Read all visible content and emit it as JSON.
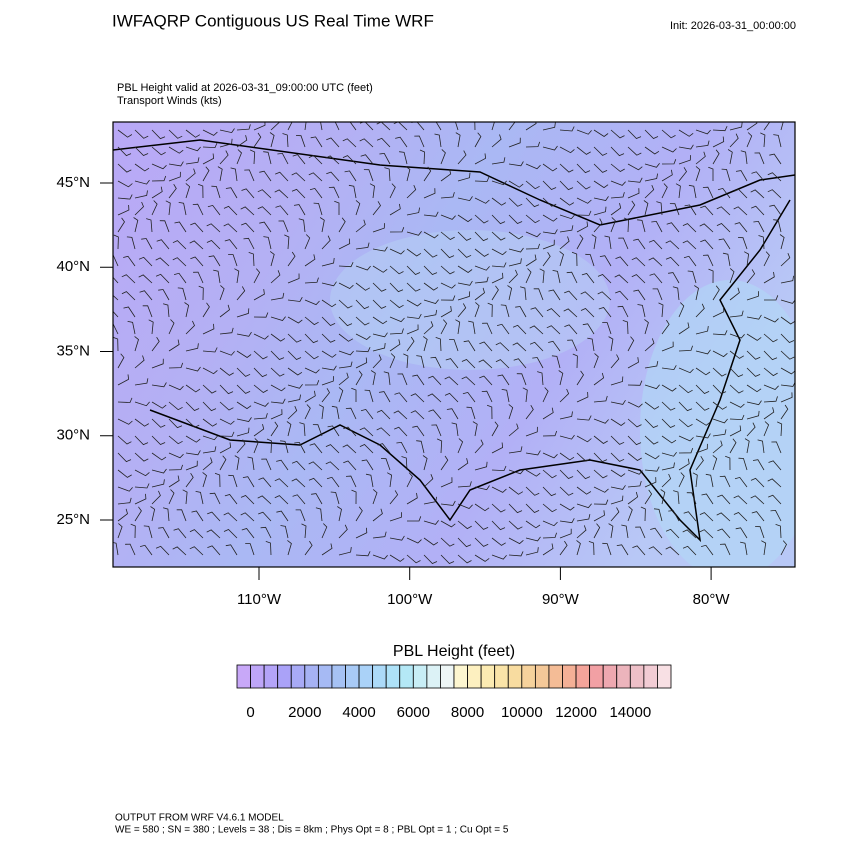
{
  "header": {
    "title": "IWFAQRP Contiguous US Real Time WRF",
    "init": "Init: 2026-03-31_00:00:00"
  },
  "subtitle": [
    "PBL Height valid at 2026-03-31_09:00:00 UTC   (feet)",
    "Transport Winds   (kts)"
  ],
  "map": {
    "lat_ticks": [
      {
        "value": 45,
        "label": "45°N"
      },
      {
        "value": 40,
        "label": "40°N"
      },
      {
        "value": 35,
        "label": "35°N"
      },
      {
        "value": 30,
        "label": "30°N"
      },
      {
        "value": 25,
        "label": "25°N"
      }
    ],
    "lon_ticks": [
      {
        "value": -110,
        "label": "110°W"
      },
      {
        "value": -100,
        "label": "100°W"
      },
      {
        "value": -90,
        "label": "90°W"
      },
      {
        "value": -80,
        "label": "80°W"
      }
    ]
  },
  "colorbar": {
    "title": "PBL Height  (feet)",
    "range": [
      -500,
      15500
    ],
    "colors": [
      "#c8a8f8",
      "#bea6f8",
      "#b4a4f8",
      "#aaa2f8",
      "#a8aaf6",
      "#a6b2f4",
      "#a6baf4",
      "#a6c2f4",
      "#a8caf6",
      "#aad2f8",
      "#acdaf8",
      "#aee2f8",
      "#b4e8f6",
      "#c8eef6",
      "#dcf2f6",
      "#eef6f6",
      "#fdf6d0",
      "#fdf0c0",
      "#fcebb2",
      "#fae4a8",
      "#f8dca0",
      "#f6d29c",
      "#f4c898",
      "#f4bc96",
      "#f4b096",
      "#f4a49a",
      "#f2a0a4",
      "#eea8b0",
      "#ecb4bc",
      "#eec0c8",
      "#f2ccd4",
      "#f8e0e4"
    ],
    "labels": [
      {
        "value": 0,
        "label": "0"
      },
      2000,
      4000,
      6000,
      8000,
      10000,
      12000,
      14000
    ]
  },
  "footer": [
    "OUTPUT FROM WRF V4.6.1 MODEL",
    "WE = 580 ; SN = 380 ; Levels = 38 ; Dis = 8km ; Phys Opt = 8 ; PBL Opt = 1 ; Cu Opt = 5"
  ]
}
